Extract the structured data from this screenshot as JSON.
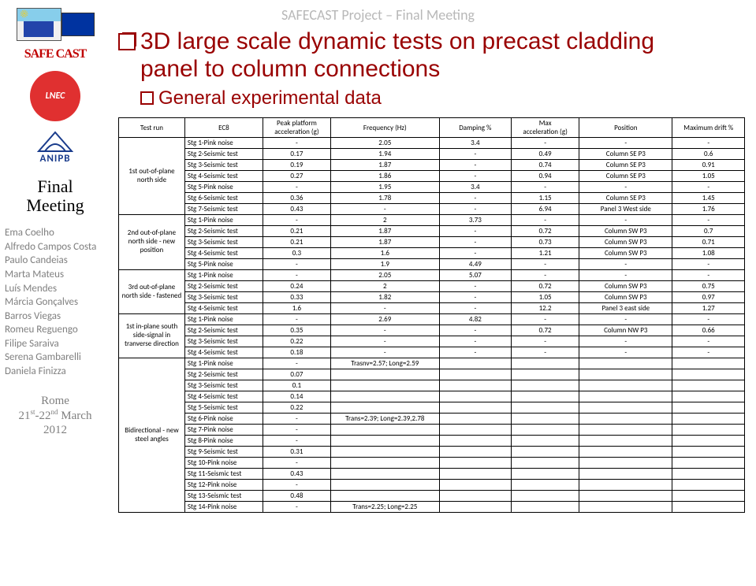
{
  "header": "SAFECAST Project – Final Meeting",
  "sidebar": {
    "safecast": "SAFE CAST",
    "red_logo": "LNEC",
    "anipb": "ANIPB",
    "final_meeting_l1": "Final",
    "final_meeting_l2": "Meeting",
    "names": [
      "Ema Coelho",
      "Alfredo Campos Costa",
      "Paulo Candeias",
      "Marta Mateus",
      "Luís Mendes",
      "Márcia Gonçalves",
      "Barros Viegas",
      "Romeu Reguengo",
      "Filipe Saraiva",
      "Serena Gambarelli",
      "Daniela Finizza"
    ],
    "rome_l1": "Rome",
    "rome_l2_a": "21",
    "rome_l2_sup1": "st",
    "rome_l2_b": "-22",
    "rome_l2_sup2": "nd",
    "rome_l2_c": " March",
    "rome_l3": "2012"
  },
  "title1_a": "3D large scale dynamic tests on precast cladding",
  "title1_b": "panel to column connections",
  "title2": "General experimental data",
  "table": {
    "headers": {
      "testrun": "Test run",
      "ec8": "EC8",
      "peak": "Peak platform\nacceleration (g)",
      "freq": "Frequency (Hz)",
      "damp": "Damping %",
      "max": "Max\nacceleration (g)",
      "pos": "Position",
      "drift": "Maximum drift %"
    },
    "groups": [
      {
        "testrun": "1st out-of-plane north side",
        "rows": [
          [
            "Stg 1-Pink noise",
            "-",
            "2.05",
            "3.4",
            "-",
            "-",
            "-"
          ],
          [
            "Stg 2-Seismic test",
            "0.17",
            "1.94",
            "-",
            "0.49",
            "Column SE P3",
            "0.6"
          ],
          [
            "Stg 3-Seismic test",
            "0.19",
            "1.87",
            "-",
            "0.74",
            "Column SE P3",
            "0.91"
          ],
          [
            "Stg 4-Seismic test",
            "0.27",
            "1.86",
            "-",
            "0.94",
            "Column SE P3",
            "1.05"
          ],
          [
            "Stg 5-Pink noise",
            "-",
            "1.95",
            "3.4",
            "-",
            "-",
            "-"
          ],
          [
            "Stg 6-Seismic test",
            "0.36",
            "1.78",
            "-",
            "1.15",
            "Column SE P3",
            "1.45"
          ],
          [
            "Stg 7-Seismic test",
            "0.43",
            "-",
            "-",
            "6.94",
            "Panel 3 West side",
            "1.76"
          ]
        ]
      },
      {
        "testrun": "2nd out-of-plane north side - new position",
        "rows": [
          [
            "Stg 1-Pink noise",
            "-",
            "2",
            "3.73",
            "-",
            "-",
            "-"
          ],
          [
            "Stg 2-Seismic test",
            "0.21",
            "1.87",
            "-",
            "0.72",
            "Column SW P3",
            "0.7"
          ],
          [
            "Stg 3-Seismic test",
            "0.21",
            "1.87",
            "-",
            "0.73",
            "Column SW P3",
            "0.71"
          ],
          [
            "Stg 4-Seismic test",
            "0.3",
            "1.6",
            "-",
            "1.21",
            "Column SW P3",
            "1.08"
          ],
          [
            "Stg 5-Pink noise",
            "-",
            "1.9",
            "4.49",
            "-",
            "-",
            "-"
          ]
        ]
      },
      {
        "testrun": "3rd out-of-plane north side - fastened",
        "rows": [
          [
            "Stg 1-Pink noise",
            "-",
            "2.05",
            "5.07",
            "-",
            "-",
            "-"
          ],
          [
            "Stg 2-Seismic test",
            "0.24",
            "2",
            "-",
            "0.72",
            "Column SW P3",
            "0.75"
          ],
          [
            "Stg 3-Seismic test",
            "0.33",
            "1.82",
            "-",
            "1.05",
            "Column SW P3",
            "0.97"
          ],
          [
            "Stg 4-Seismic test",
            "1.6",
            "-",
            "-",
            "12.2",
            "Panel 3 east side",
            "1.27"
          ]
        ]
      },
      {
        "testrun": "1st in-plane south side-signal in tranverse direction",
        "rows": [
          [
            "Stg 1-Pink noise",
            "-",
            "2.69",
            "4.82",
            "-",
            "-",
            "-"
          ],
          [
            "Stg 2-Seismic test",
            "0.35",
            "-",
            "-",
            "0.72",
            "Column NW P3",
            "0.66"
          ],
          [
            "Stg 3-Seismic test",
            "0.22",
            "-",
            "-",
            "-",
            "-",
            "-"
          ],
          [
            "Stg 4-Seismic test",
            "0.18",
            "-",
            "-",
            "-",
            "-",
            "-"
          ]
        ]
      },
      {
        "testrun": "Bidirectional - new steel angles",
        "rows": [
          [
            "Stg 1-Pink noise",
            "-",
            "Trasnv=2.57; Long=2.59",
            "",
            "",
            "",
            ""
          ],
          [
            "Stg 2-Seismic test",
            "0.07",
            "",
            "",
            "",
            "",
            ""
          ],
          [
            "Stg 3-Seismic test",
            "0.1",
            "",
            "",
            "",
            "",
            ""
          ],
          [
            "Stg 4-Seismic test",
            "0.14",
            "",
            "",
            "",
            "",
            ""
          ],
          [
            "Stg 5-Seismic test",
            "0.22",
            "",
            "",
            "",
            "",
            ""
          ],
          [
            "Stg 6-Pink noise",
            "-",
            "Trans=2.39; Long=2.39,2.78",
            "",
            "",
            "",
            ""
          ],
          [
            "Stg 7-Pink noise",
            "-",
            "",
            "",
            "",
            "",
            ""
          ],
          [
            "Stg 8-Pink noise",
            "-",
            "",
            "",
            "",
            "",
            ""
          ],
          [
            "Stg 9-Seismic test",
            "0.31",
            "",
            "",
            "",
            "",
            ""
          ],
          [
            "Stg 10-Pink noise",
            "-",
            "",
            "",
            "",
            "",
            ""
          ],
          [
            "Stg 11-Seismic test",
            "0.43",
            "",
            "",
            "",
            "",
            ""
          ],
          [
            "Stg 12-Pink noise",
            "-",
            "",
            "",
            "",
            "",
            ""
          ],
          [
            "Stg 13-Seismic test",
            "0.48",
            "",
            "",
            "",
            "",
            ""
          ],
          [
            "Stg 14-Pink noise",
            "-",
            "Trans=2.25; Long=2.25",
            "",
            "",
            "",
            ""
          ]
        ]
      }
    ]
  }
}
